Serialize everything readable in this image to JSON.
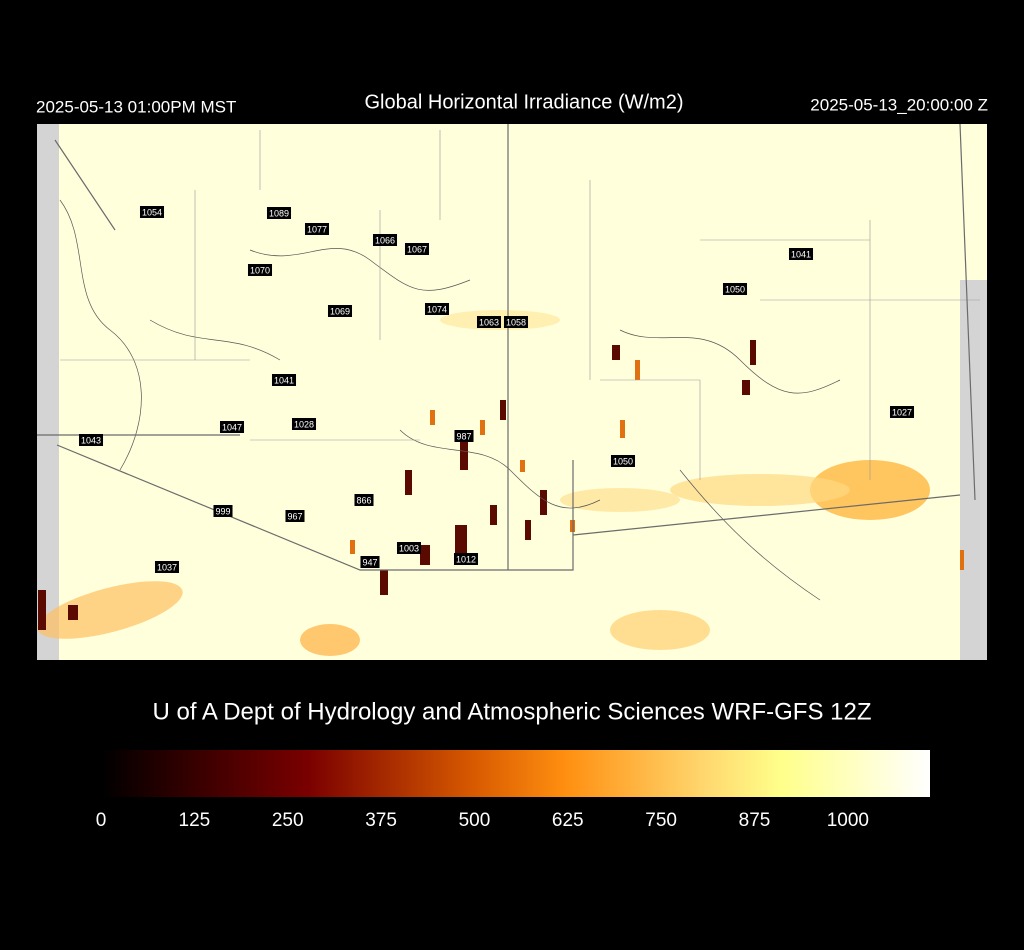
{
  "header": {
    "left": "2025-05-13 01:00PM MST",
    "title": "Global Horizontal Irradiance (W/m2)",
    "right": "2025-05-13_20:00:00 Z"
  },
  "stations": [
    1054,
    1089,
    1077,
    1066,
    1067,
    1070,
    1041,
    1050,
    1069,
    1074,
    1063,
    1058,
    1041,
    1047,
    1028,
    987,
    1027,
    1043,
    1050,
    866,
    999,
    967,
    1003,
    1012,
    947,
    1037
  ],
  "credit": "U of A Dept of Hydrology and Atmospheric Sciences WRF-GFS 12Z",
  "colorbar": {
    "lim": [
      0,
      1110
    ],
    "ticks": [
      0,
      125,
      250,
      375,
      500,
      625,
      750,
      875,
      1000
    ]
  }
}
